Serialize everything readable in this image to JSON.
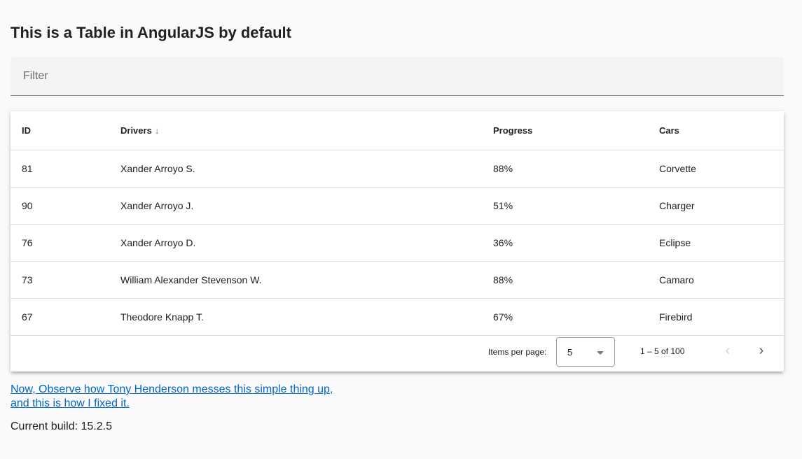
{
  "title": "This is a Table in AngularJS by default",
  "filter": {
    "placeholder": "Filter",
    "value": ""
  },
  "table": {
    "columns": [
      "ID",
      "Drivers",
      "Progress",
      "Cars"
    ],
    "sort": {
      "column": "Drivers",
      "direction": "descending",
      "icon": "arrow-down-icon"
    },
    "rows": [
      [
        "81",
        "Xander Arroyo S.",
        "88%",
        "Corvette"
      ],
      [
        "90",
        "Xander Arroyo J.",
        "51%",
        "Charger"
      ],
      [
        "76",
        "Xander Arroyo D.",
        "36%",
        "Eclipse"
      ],
      [
        "73",
        "William Alexander Stevenson W.",
        "88%",
        "Camaro"
      ],
      [
        "67",
        "Theodore Knapp T.",
        "67%",
        "Firebird"
      ]
    ]
  },
  "paginator": {
    "items_per_page_label": "Items per page:",
    "page_size": "5",
    "range_label": "1 – 5 of 100",
    "prev_icon": "chevron-left-icon",
    "next_icon": "chevron-right-icon"
  },
  "link_text": "Now, Observe how Tony Henderson messes this simple thing up, and this is how I fixed it.",
  "build": "Current build: 15.2.5",
  "colors": {
    "link": "#0066cc",
    "background": "#fafafa"
  }
}
